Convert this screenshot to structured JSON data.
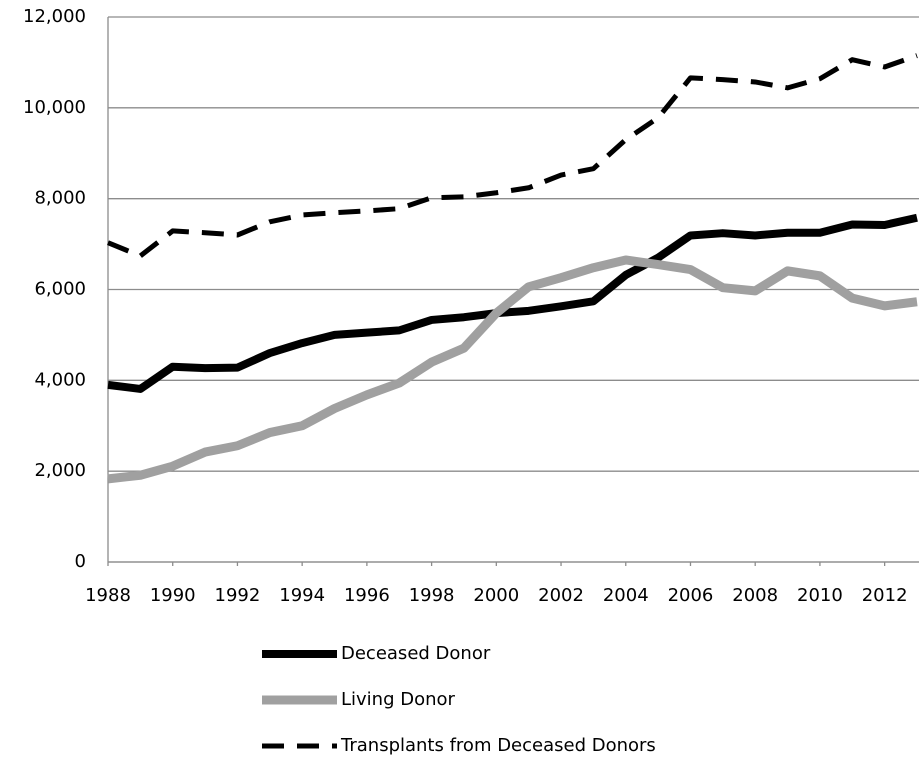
{
  "chart_data": {
    "type": "line",
    "x": [
      1988,
      1989,
      1990,
      1991,
      1992,
      1993,
      1994,
      1995,
      1996,
      1997,
      1998,
      1999,
      2000,
      2001,
      2002,
      2003,
      2004,
      2005,
      2006,
      2007,
      2008,
      2009,
      2010,
      2011,
      2012,
      2013
    ],
    "series": [
      {
        "name": "Deceased Donor",
        "color": "#000000",
        "line_style": "solid",
        "values": [
          3900,
          3810,
          4300,
          4270,
          4280,
          4600,
          4820,
          5000,
          5050,
          5100,
          5330,
          5390,
          5480,
          5530,
          5630,
          5740,
          6320,
          6700,
          7190,
          7240,
          7190,
          7250,
          7250,
          7430,
          7420,
          7580
        ]
      },
      {
        "name": "Living Donor",
        "color": "#a0a0a0",
        "line_style": "solid",
        "values": [
          1830,
          1910,
          2110,
          2420,
          2560,
          2850,
          3000,
          3380,
          3680,
          3940,
          4400,
          4710,
          5480,
          6060,
          6260,
          6480,
          6650,
          6550,
          6440,
          6040,
          5970,
          6410,
          6300,
          5810,
          5640,
          5730
        ]
      },
      {
        "name": "Transplants from Deceased Donors",
        "color": "#000000",
        "line_style": "dashed",
        "values": [
          7030,
          6740,
          7290,
          7250,
          7200,
          7490,
          7640,
          7690,
          7730,
          7780,
          8020,
          8040,
          8130,
          8240,
          8520,
          8660,
          9300,
          9780,
          10660,
          10620,
          10570,
          10440,
          10640,
          11060,
          10900,
          11150
        ]
      }
    ],
    "xlim": [
      1988,
      2013
    ],
    "xticks": [
      1988,
      1990,
      1992,
      1994,
      1996,
      1998,
      2000,
      2002,
      2004,
      2006,
      2008,
      2010,
      2012
    ],
    "ylim": [
      0,
      12000
    ],
    "yticks": [
      0,
      {
        "value": 2000,
        "label": "2,000"
      },
      {
        "value": 4000,
        "label": "4,000"
      },
      {
        "value": 6000,
        "label": "6,000"
      },
      {
        "value": 8000,
        "label": "8,000"
      },
      {
        "value": 10000,
        "label": "10,000"
      },
      {
        "value": 12000,
        "label": "12,000"
      }
    ],
    "grid": true,
    "legend": "bottom"
  }
}
